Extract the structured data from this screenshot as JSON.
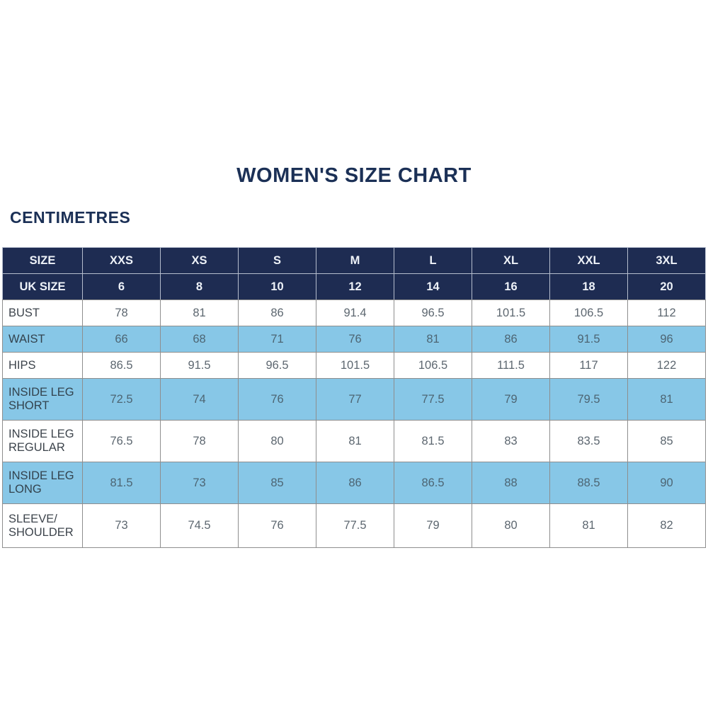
{
  "page": {
    "title": "WOMEN'S SIZE CHART",
    "unit_label": "CENTIMETRES"
  },
  "colors": {
    "header_navy": "#1e2c52",
    "row_light_blue": "#87c7e7",
    "row_white": "#ffffff",
    "title_navy": "#1b3056",
    "cell_border_gray": "#8e8e8e"
  },
  "chart_data": {
    "type": "table",
    "title": "WOMEN'S SIZE CHART",
    "unit": "CENTIMETRES",
    "columns": [
      "SIZE",
      "XXS",
      "XS",
      "S",
      "M",
      "L",
      "XL",
      "XXL",
      "3XL"
    ],
    "uk_size_row": {
      "label": "UK SIZE",
      "values": [
        "6",
        "8",
        "10",
        "12",
        "14",
        "16",
        "18",
        "20"
      ]
    },
    "rows": [
      {
        "label": "BUST",
        "values": [
          "78",
          "81",
          "86",
          "91.4",
          "96.5",
          "101.5",
          "106.5",
          "112"
        ]
      },
      {
        "label": "WAIST",
        "values": [
          "66",
          "68",
          "71",
          "76",
          "81",
          "86",
          "91.5",
          "96"
        ]
      },
      {
        "label": "HIPS",
        "values": [
          "86.5",
          "91.5",
          "96.5",
          "101.5",
          "106.5",
          "111.5",
          "117",
          "122"
        ]
      },
      {
        "label": "INSIDE LEG SHORT",
        "values": [
          "72.5",
          "74",
          "76",
          "77",
          "77.5",
          "79",
          "79.5",
          "81"
        ]
      },
      {
        "label": "INSIDE LEG REGULAR",
        "values": [
          "76.5",
          "78",
          "80",
          "81",
          "81.5",
          "83",
          "83.5",
          "85"
        ]
      },
      {
        "label": "INSIDE LEG LONG",
        "values": [
          "81.5",
          "73",
          "85",
          "86",
          "86.5",
          "88",
          "88.5",
          "90"
        ]
      },
      {
        "label": "SLEEVE/ SHOULDER",
        "values": [
          "73",
          "74.5",
          "76",
          "77.5",
          "79",
          "80",
          "81",
          "82"
        ]
      }
    ]
  },
  "table": {
    "header": {
      "size_label": "SIZE",
      "sizes": [
        "XXS",
        "XS",
        "S",
        "M",
        "L",
        "XL",
        "XXL",
        "3XL"
      ],
      "uk_size_label": "UK SIZE",
      "uk_sizes": [
        "6",
        "8",
        "10",
        "12",
        "14",
        "16",
        "18",
        "20"
      ]
    },
    "rows": [
      {
        "label": "BUST",
        "shade": "white",
        "values": [
          "78",
          "81",
          "86",
          "91.4",
          "96.5",
          "101.5",
          "106.5",
          "112"
        ]
      },
      {
        "label": "WAIST",
        "shade": "blue",
        "values": [
          "66",
          "68",
          "71",
          "76",
          "81",
          "86",
          "91.5",
          "96"
        ]
      },
      {
        "label": "HIPS",
        "shade": "white",
        "values": [
          "86.5",
          "91.5",
          "96.5",
          "101.5",
          "106.5",
          "111.5",
          "117",
          "122"
        ]
      },
      {
        "label": "INSIDE LEG SHORT",
        "shade": "blue",
        "values": [
          "72.5",
          "74",
          "76",
          "77",
          "77.5",
          "79",
          "79.5",
          "81"
        ]
      },
      {
        "label": "INSIDE LEG REGULAR",
        "shade": "white",
        "values": [
          "76.5",
          "78",
          "80",
          "81",
          "81.5",
          "83",
          "83.5",
          "85"
        ]
      },
      {
        "label": "INSIDE LEG LONG",
        "shade": "blue",
        "values": [
          "81.5",
          "73",
          "85",
          "86",
          "86.5",
          "88",
          "88.5",
          "90"
        ]
      },
      {
        "label": "SLEEVE/ SHOULDER",
        "shade": "white",
        "values": [
          "73",
          "74.5",
          "76",
          "77.5",
          "79",
          "80",
          "81",
          "82"
        ]
      }
    ]
  }
}
